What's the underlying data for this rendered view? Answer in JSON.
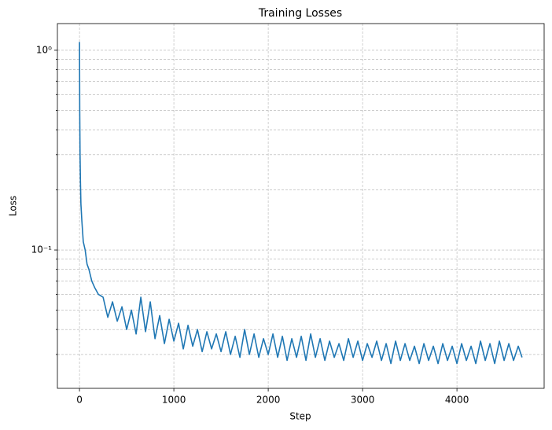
{
  "chart_data": {
    "type": "line",
    "title": "Training Losses",
    "xlabel": "Step",
    "ylabel": "Loss",
    "x": [
      0,
      3,
      6,
      10,
      15,
      25,
      40,
      60,
      80,
      100,
      130,
      160,
      200,
      250,
      300,
      350,
      400,
      450,
      500,
      550,
      600,
      650,
      700,
      750,
      800,
      850,
      900,
      950,
      1000,
      1050,
      1100,
      1150,
      1200,
      1250,
      1300,
      1350,
      1400,
      1450,
      1500,
      1550,
      1600,
      1650,
      1700,
      1750,
      1800,
      1850,
      1900,
      1950,
      2000,
      2050,
      2100,
      2150,
      2200,
      2250,
      2300,
      2350,
      2400,
      2450,
      2500,
      2550,
      2600,
      2650,
      2700,
      2750,
      2800,
      2850,
      2900,
      2950,
      3000,
      3050,
      3100,
      3150,
      3200,
      3250,
      3300,
      3350,
      3400,
      3450,
      3500,
      3550,
      3600,
      3650,
      3700,
      3750,
      3800,
      3850,
      3900,
      3950,
      4000,
      4050,
      4100,
      4150,
      4200,
      4250,
      4300,
      4350,
      4400,
      4450,
      4500,
      4550,
      4600,
      4650,
      4690
    ],
    "series": [
      {
        "name": "Loss",
        "color": "#1f77b4",
        "values": [
          1.1,
          0.5,
          0.3,
          0.22,
          0.17,
          0.14,
          0.11,
          0.1,
          0.085,
          0.08,
          0.07,
          0.065,
          0.06,
          0.058,
          0.046,
          0.055,
          0.044,
          0.052,
          0.04,
          0.05,
          0.038,
          0.058,
          0.039,
          0.055,
          0.036,
          0.047,
          0.034,
          0.045,
          0.035,
          0.043,
          0.032,
          0.042,
          0.033,
          0.04,
          0.031,
          0.039,
          0.032,
          0.038,
          0.031,
          0.039,
          0.03,
          0.037,
          0.029,
          0.04,
          0.03,
          0.038,
          0.029,
          0.036,
          0.03,
          0.038,
          0.029,
          0.037,
          0.028,
          0.036,
          0.029,
          0.037,
          0.028,
          0.038,
          0.029,
          0.036,
          0.028,
          0.035,
          0.029,
          0.034,
          0.028,
          0.036,
          0.029,
          0.035,
          0.028,
          0.034,
          0.029,
          0.035,
          0.028,
          0.034,
          0.027,
          0.035,
          0.028,
          0.034,
          0.028,
          0.033,
          0.027,
          0.034,
          0.028,
          0.033,
          0.027,
          0.034,
          0.028,
          0.033,
          0.027,
          0.034,
          0.028,
          0.033,
          0.027,
          0.035,
          0.028,
          0.034,
          0.027,
          0.035,
          0.028,
          0.034,
          0.028,
          0.033,
          0.029
        ]
      }
    ],
    "xlim": [
      -234,
      4924
    ],
    "xticks": [
      0,
      1000,
      2000,
      3000,
      4000
    ],
    "ylim": [
      0.0203,
      1.36
    ],
    "ylog": true,
    "yticks": [
      {
        "value": 0.1,
        "label": "10⁻¹"
      },
      {
        "value": 1,
        "label": "10⁰"
      }
    ],
    "yminor_ticks": [
      0.03,
      0.04,
      0.05,
      0.06,
      0.07,
      0.08,
      0.09,
      0.2,
      0.3,
      0.4,
      0.5,
      0.6,
      0.7,
      0.8,
      0.9
    ],
    "grid": true
  }
}
